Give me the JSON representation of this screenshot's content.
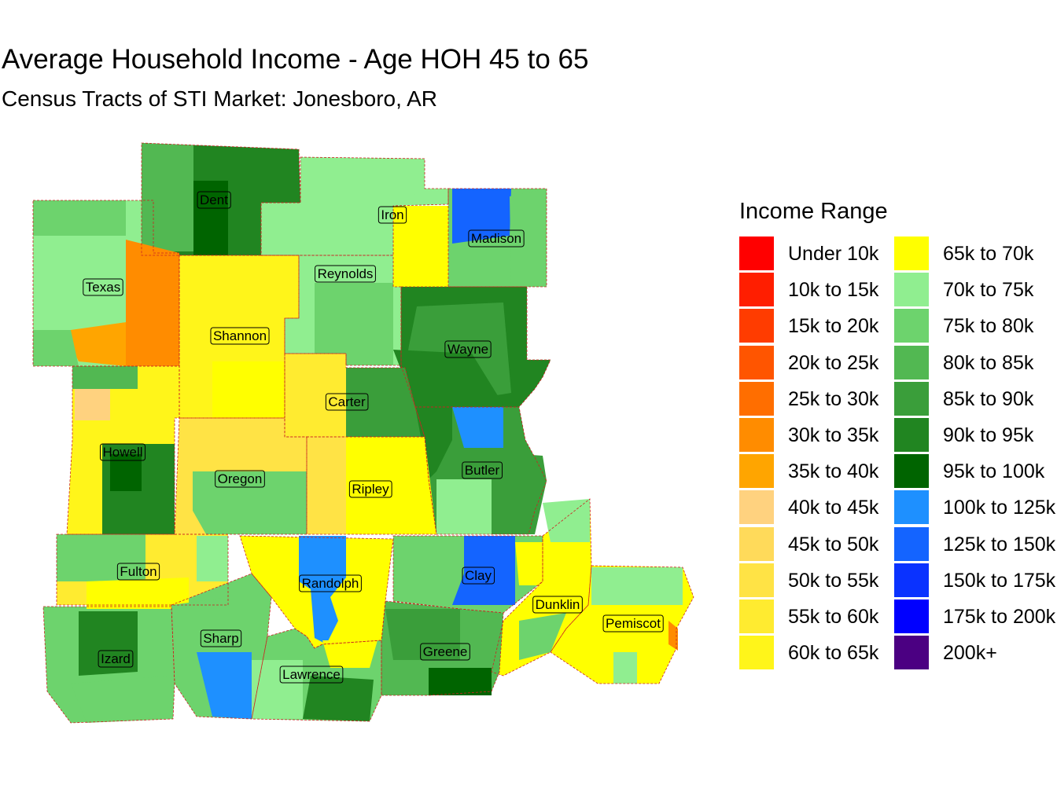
{
  "title": "Average Household Income - Age HOH 45 to 65",
  "subtitle": "Census Tracts of STI Market: Jonesboro, AR",
  "legend": {
    "title": "Income Range",
    "items": [
      {
        "label": "Under 10k",
        "color": "#FF0000"
      },
      {
        "label": "10k to 15k",
        "color": "#FF1E00"
      },
      {
        "label": "15k to 20k",
        "color": "#FF3C00"
      },
      {
        "label": "20k to 25k",
        "color": "#FF5500"
      },
      {
        "label": "25k to 30k",
        "color": "#FF6E00"
      },
      {
        "label": "30k to 35k",
        "color": "#FF8C00"
      },
      {
        "label": "35k to 40k",
        "color": "#FFA500"
      },
      {
        "label": "40k to 45k",
        "color": "#FFD27F"
      },
      {
        "label": "45k to 50k",
        "color": "#FFDA5A"
      },
      {
        "label": "50k to 55k",
        "color": "#FFE345"
      },
      {
        "label": "55k to 60k",
        "color": "#FFEB30"
      },
      {
        "label": "60k to 65k",
        "color": "#FFF51A"
      },
      {
        "label": "65k to 70k",
        "color": "#FFFF00"
      },
      {
        "label": "70k to 75k",
        "color": "#90EE90"
      },
      {
        "label": "75k to 80k",
        "color": "#6DD36D"
      },
      {
        "label": "80k to 85k",
        "color": "#52B852"
      },
      {
        "label": "85k to 90k",
        "color": "#3A9E3A"
      },
      {
        "label": "90k to 95k",
        "color": "#218521"
      },
      {
        "label": "95k to 100k",
        "color": "#006400"
      },
      {
        "label": "100k to 125k",
        "color": "#1E90FF"
      },
      {
        "label": "125k to 150k",
        "color": "#1464FF"
      },
      {
        "label": "150k to 175k",
        "color": "#0A32FF"
      },
      {
        "label": "175k to 200k",
        "color": "#0000FF"
      },
      {
        "label": "200k+",
        "color": "#4B0082"
      }
    ]
  },
  "counties": [
    {
      "name": "Dent",
      "color": "#218521"
    },
    {
      "name": "Iron",
      "color": "#90EE90"
    },
    {
      "name": "Madison",
      "color": "#6DD36D"
    },
    {
      "name": "Texas",
      "color": "#90EE90"
    },
    {
      "name": "Reynolds",
      "color": "#90EE90"
    },
    {
      "name": "Shannon",
      "color": "#FFF51A"
    },
    {
      "name": "Wayne",
      "color": "#218521"
    },
    {
      "name": "Carter",
      "color": "#FFEB30"
    },
    {
      "name": "Howell",
      "color": "#FFF51A"
    },
    {
      "name": "Butler",
      "color": "#3A9E3A"
    },
    {
      "name": "Oregon",
      "color": "#FFE345"
    },
    {
      "name": "Ripley",
      "color": "#FFE345"
    },
    {
      "name": "Fulton",
      "color": "#FFEB30"
    },
    {
      "name": "Randolph",
      "color": "#FFFF00"
    },
    {
      "name": "Clay",
      "color": "#6DD36D"
    },
    {
      "name": "Dunklin",
      "color": "#FFFF00"
    },
    {
      "name": "Pemiscot",
      "color": "#FFFF00"
    },
    {
      "name": "Sharp",
      "color": "#6DD36D"
    },
    {
      "name": "Izard",
      "color": "#6DD36D"
    },
    {
      "name": "Greene",
      "color": "#52B852"
    },
    {
      "name": "Lawrence",
      "color": "#6DD36D"
    }
  ]
}
